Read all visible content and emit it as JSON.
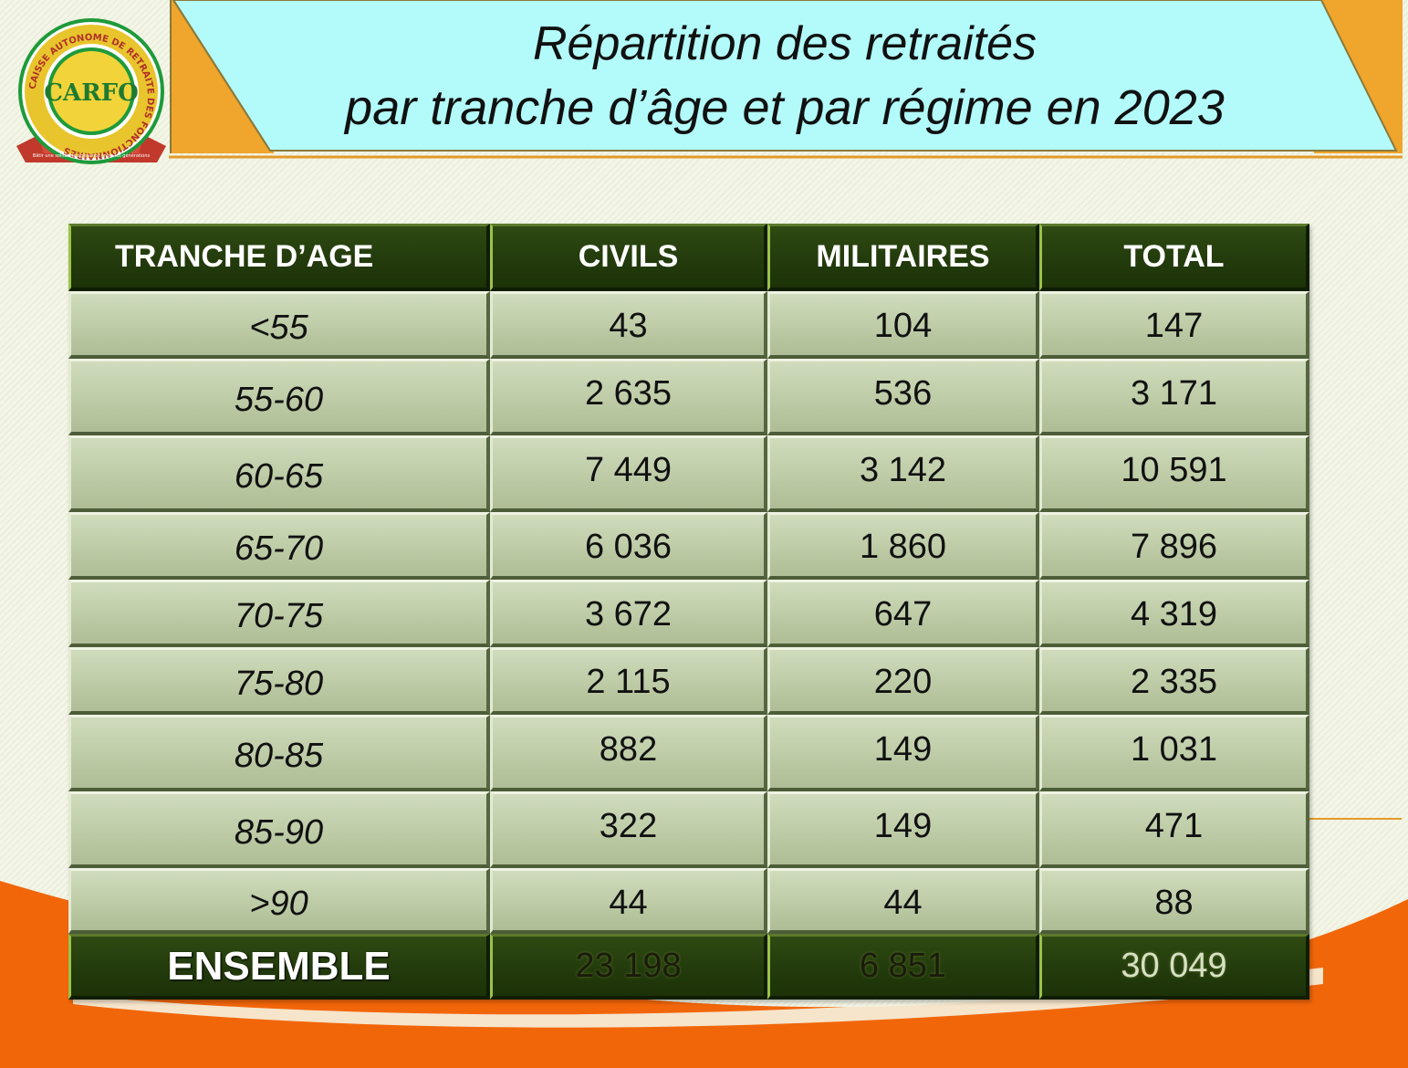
{
  "title": {
    "line1": "Répartition des retraités",
    "line2": "par tranche d’âge et par régime en 2023"
  },
  "logo": {
    "center_text": "CARFO",
    "ring_text": "CAISSE AUTONOME DE RETRAITE DES FONCTIONNAIRES",
    "motto": "Bâtir une solidarité agissante entre les générations"
  },
  "colors": {
    "banner": "#b3fbfb",
    "banner_side": "#f0a52c",
    "header_green": "#223a0c",
    "cell_green": "#bdcba6",
    "orange": "#f2660a"
  },
  "table": {
    "headers": [
      "TRANCHE D’AGE",
      "CIVILS",
      "MILITAIRES",
      "TOTAL"
    ],
    "rows": [
      [
        "<55",
        "43",
        "104",
        "147"
      ],
      [
        "55-60",
        "2 635",
        "536",
        "3 171"
      ],
      [
        "60-65",
        "7 449",
        "3 142",
        "10 591"
      ],
      [
        "65-70",
        "6 036",
        "1 860",
        "7 896"
      ],
      [
        "70-75",
        "3 672",
        "647",
        "4 319"
      ],
      [
        "75-80",
        "2 115",
        "220",
        "2 335"
      ],
      [
        "80-85",
        "882",
        "149",
        "1 031"
      ],
      [
        "85-90",
        "322",
        "149",
        "471"
      ],
      [
        ">90",
        "44",
        "44",
        "88"
      ]
    ],
    "total_row": [
      "ENSEMBLE",
      "23 198",
      "6 851",
      "30 049"
    ]
  }
}
